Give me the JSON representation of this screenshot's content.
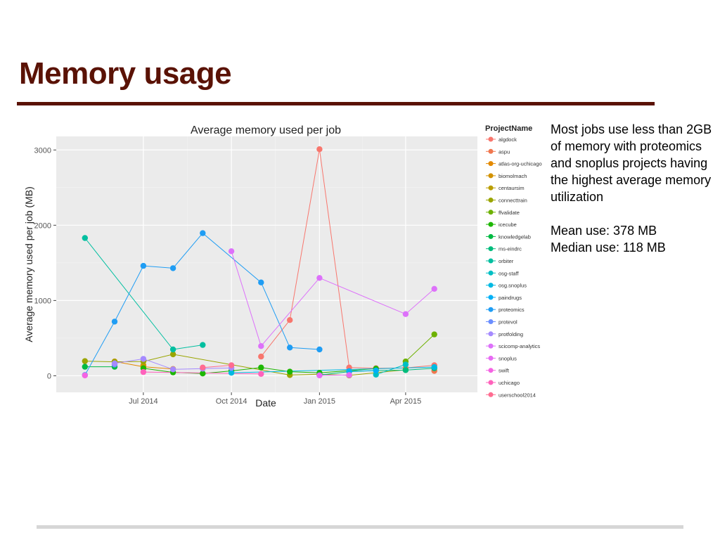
{
  "slide": {
    "title": "Memory usage",
    "title_color": "#5a1205",
    "notes_main": "Most jobs use less than 2GB of memory with proteomics and snoplus projects having the highest average memory utilization",
    "mean": "Mean use: 378 MB",
    "median": "Median use: 118 MB"
  },
  "chart_data": {
    "type": "line",
    "title": "Average memory used per job",
    "xlabel": "Date",
    "ylabel": "Average memory used per job (MB)",
    "legend_title": "ProjectName",
    "legend_position": "right",
    "x_ticks": [
      {
        "label": "Jul 2014",
        "date": "2014-07-01"
      },
      {
        "label": "Oct 2014",
        "date": "2014-10-01"
      },
      {
        "label": "Jan 2015",
        "date": "2015-01-01"
      },
      {
        "label": "Apr 2015",
        "date": "2015-04-01"
      }
    ],
    "y_ticks": [
      0,
      1000,
      2000,
      3000
    ],
    "xlim": [
      "2014-04-01",
      "2015-06-15"
    ],
    "ylim": [
      -220,
      3180
    ],
    "grid": true,
    "series": [
      {
        "name": "algdock",
        "color": "#F8766D",
        "points": [
          [
            "2014-11-01",
            255
          ],
          [
            "2014-12-01",
            740
          ],
          [
            "2015-01-01",
            3010
          ],
          [
            "2015-02-01",
            110
          ],
          [
            "2015-03-01",
            100
          ],
          [
            "2015-04-01",
            105
          ],
          [
            "2015-05-01",
            140
          ]
        ]
      },
      {
        "name": "aspu",
        "color": "#F0774F",
        "points": [
          [
            "2015-05-01",
            65
          ]
        ]
      },
      {
        "name": "atlas-org-uchicago",
        "color": "#E38900",
        "points": [
          [
            "2014-06-01",
            190
          ],
          [
            "2014-07-01",
            120
          ],
          [
            "2014-08-01",
            90
          ]
        ]
      },
      {
        "name": "biomolmach",
        "color": "#D29200",
        "points": [
          [
            "2014-07-01",
            140
          ]
        ]
      },
      {
        "name": "centaursim",
        "color": "#BA9E00",
        "points": [
          [
            "2015-02-01",
            10
          ]
        ]
      },
      {
        "name": "connecttrain",
        "color": "#9AA500",
        "points": [
          [
            "2014-05-01",
            195
          ],
          [
            "2014-06-01",
            185
          ],
          [
            "2014-07-01",
            190
          ],
          [
            "2014-08-01",
            285
          ],
          [
            "2014-12-01",
            10
          ],
          [
            "2015-01-01",
            20
          ],
          [
            "2015-02-01",
            5
          ],
          [
            "2015-04-01",
            80
          ]
        ]
      },
      {
        "name": "ffvalidate",
        "color": "#6DB100",
        "points": [
          [
            "2015-04-01",
            190
          ],
          [
            "2015-05-01",
            550
          ]
        ]
      },
      {
        "name": "icecube",
        "color": "#1DB703",
        "points": [
          [
            "2014-07-01",
            100
          ],
          [
            "2014-08-01",
            45
          ],
          [
            "2014-09-01",
            30
          ],
          [
            "2014-10-01",
            65
          ],
          [
            "2014-11-01",
            110
          ],
          [
            "2014-12-01",
            55
          ],
          [
            "2015-01-01",
            40
          ],
          [
            "2015-03-01",
            95
          ]
        ]
      },
      {
        "name": "knowledgelab",
        "color": "#00BA43",
        "points": [
          [
            "2014-05-01",
            120
          ],
          [
            "2014-06-01",
            120
          ]
        ]
      },
      {
        "name": "ms-eindrc",
        "color": "#00BC7C",
        "points": [
          [
            "2015-01-01",
            10
          ],
          [
            "2015-02-01",
            55
          ],
          [
            "2015-03-01",
            70
          ],
          [
            "2015-04-01",
            75
          ],
          [
            "2015-05-01",
            100
          ]
        ]
      },
      {
        "name": "orbiter",
        "color": "#00BFA0",
        "points": [
          [
            "2014-05-01",
            1830
          ],
          [
            "2014-08-01",
            350
          ],
          [
            "2014-09-01",
            410
          ]
        ]
      },
      {
        "name": "osg-staff",
        "color": "#00BFC4",
        "points": [
          [
            "2015-03-01",
            15
          ],
          [
            "2015-04-01",
            150
          ]
        ]
      },
      {
        "name": "osg.snoplus",
        "color": "#00B9E2",
        "points": [
          [
            "2014-10-01",
            40
          ],
          [
            "2015-05-01",
            115
          ]
        ]
      },
      {
        "name": "paindrugs",
        "color": "#00B0F6",
        "points": [
          [
            "2015-02-01",
            60
          ],
          [
            "2015-03-01",
            70
          ]
        ]
      },
      {
        "name": "proteomics",
        "color": "#1F9DF4",
        "points": [
          [
            "2014-05-01",
            10
          ],
          [
            "2014-06-01",
            720
          ],
          [
            "2014-07-01",
            1460
          ],
          [
            "2014-08-01",
            1430
          ],
          [
            "2014-09-01",
            1895
          ],
          [
            "2014-11-01",
            1240
          ],
          [
            "2014-12-01",
            375
          ],
          [
            "2015-01-01",
            350
          ]
        ]
      },
      {
        "name": "protevol",
        "color": "#6B8EFF",
        "points": [
          [
            "2014-06-01",
            150
          ]
        ]
      },
      {
        "name": "protfolding",
        "color": "#A58AFF",
        "points": [
          [
            "2014-06-01",
            165
          ],
          [
            "2014-07-01",
            225
          ],
          [
            "2014-08-01",
            85
          ],
          [
            "2014-09-01",
            95
          ],
          [
            "2014-10-01",
            105
          ]
        ]
      },
      {
        "name": "scicomp-analytics",
        "color": "#DD71FA",
        "points": [
          [
            "2014-10-01",
            1655
          ],
          [
            "2014-11-01",
            395
          ],
          [
            "2015-01-01",
            1300
          ],
          [
            "2015-04-01",
            820
          ],
          [
            "2015-05-01",
            1155
          ]
        ]
      },
      {
        "name": "snoplus",
        "color": "#E76BF3",
        "points": [
          [
            "2015-01-01",
            5
          ],
          [
            "2015-02-01",
            10
          ]
        ]
      },
      {
        "name": "swift",
        "color": "#F564E3",
        "points": [
          [
            "2014-05-01",
            5
          ]
        ]
      },
      {
        "name": "uchicago",
        "color": "#FF62BC",
        "points": [
          [
            "2014-07-01",
            50
          ],
          [
            "2014-11-01",
            25
          ]
        ]
      },
      {
        "name": "userschool2014",
        "color": "#FF6C91",
        "points": [
          [
            "2014-09-01",
            110
          ],
          [
            "2014-10-01",
            140
          ]
        ]
      }
    ]
  }
}
